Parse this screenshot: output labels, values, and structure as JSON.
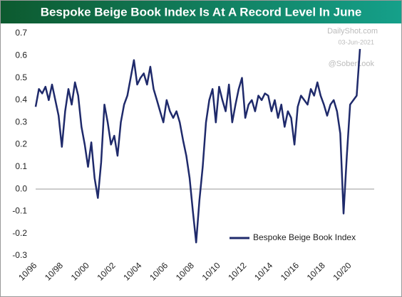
{
  "chart_data": {
    "type": "line",
    "title": "Bespoke Beige Book Index Is At A Record Level In June",
    "watermarks": [
      "DailyShot.com",
      "03-Jun-2021",
      "@SoberLook"
    ],
    "categories": [
      "10/96",
      null,
      null,
      null,
      null,
      null,
      null,
      null,
      "10/98",
      null,
      null,
      null,
      null,
      null,
      null,
      null,
      "10/00",
      null,
      null,
      null,
      null,
      null,
      null,
      null,
      "10/02",
      null,
      null,
      null,
      null,
      null,
      null,
      null,
      "10/04",
      null,
      null,
      null,
      null,
      null,
      null,
      null,
      "10/06",
      null,
      null,
      null,
      null,
      null,
      null,
      null,
      "10/08",
      null,
      null,
      null,
      null,
      null,
      null,
      null,
      "10/10",
      null,
      null,
      null,
      null,
      null,
      null,
      null,
      "10/12",
      null,
      null,
      null,
      null,
      null,
      null,
      null,
      "10/14",
      null,
      null,
      null,
      null,
      null,
      null,
      null,
      "10/16",
      null,
      null,
      null,
      null,
      null,
      null,
      null,
      "10/18",
      null,
      null,
      null,
      null,
      null,
      null,
      null,
      "10/20",
      null,
      null,
      null
    ],
    "series": [
      {
        "name": "Bespoke Beige Book Index",
        "color": "#1f2a6b",
        "values": [
          0.37,
          0.45,
          0.43,
          0.46,
          0.4,
          0.47,
          0.4,
          0.33,
          0.19,
          0.35,
          0.45,
          0.38,
          0.48,
          0.42,
          0.28,
          0.2,
          0.1,
          0.21,
          0.05,
          -0.04,
          0.12,
          0.38,
          0.3,
          0.2,
          0.24,
          0.15,
          0.3,
          0.38,
          0.42,
          0.5,
          0.58,
          0.47,
          0.5,
          0.52,
          0.47,
          0.55,
          0.45,
          0.4,
          0.35,
          0.3,
          0.4,
          0.35,
          0.32,
          0.35,
          0.3,
          0.22,
          0.15,
          0.05,
          -0.1,
          -0.24,
          -0.05,
          0.1,
          0.3,
          0.4,
          0.45,
          0.3,
          0.46,
          0.4,
          0.35,
          0.47,
          0.3,
          0.38,
          0.45,
          0.5,
          0.32,
          0.38,
          0.4,
          0.35,
          0.42,
          0.4,
          0.43,
          0.42,
          0.35,
          0.4,
          0.32,
          0.38,
          0.28,
          0.35,
          0.32,
          0.2,
          0.37,
          0.42,
          0.4,
          0.38,
          0.45,
          0.42,
          0.48,
          0.42,
          0.38,
          0.33,
          0.38,
          0.4,
          0.35,
          0.25,
          -0.11,
          0.15,
          0.38,
          0.4,
          0.42,
          0.63
        ]
      }
    ],
    "ylim": [
      -0.3,
      0.7
    ],
    "yticks": [
      -0.3,
      -0.2,
      -0.1,
      {
        "value": 0,
        "label": "0.0"
      },
      0.1,
      0.2,
      0.3,
      0.4,
      0.5,
      0.6,
      0.7
    ],
    "grid": false,
    "legend": "lower right"
  }
}
